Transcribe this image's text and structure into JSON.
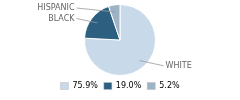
{
  "chart_data": {
    "type": "pie",
    "categories": [
      "WHITE",
      "BLACK",
      "HISPANIC"
    ],
    "values": [
      75.9,
      19.0,
      5.2
    ],
    "value_labels": [
      "75.9%",
      "19.0%",
      "5.2%"
    ],
    "colors": [
      "#c8daea",
      "#2d6080",
      "#9cb4c5"
    ],
    "legend": "bottom"
  }
}
